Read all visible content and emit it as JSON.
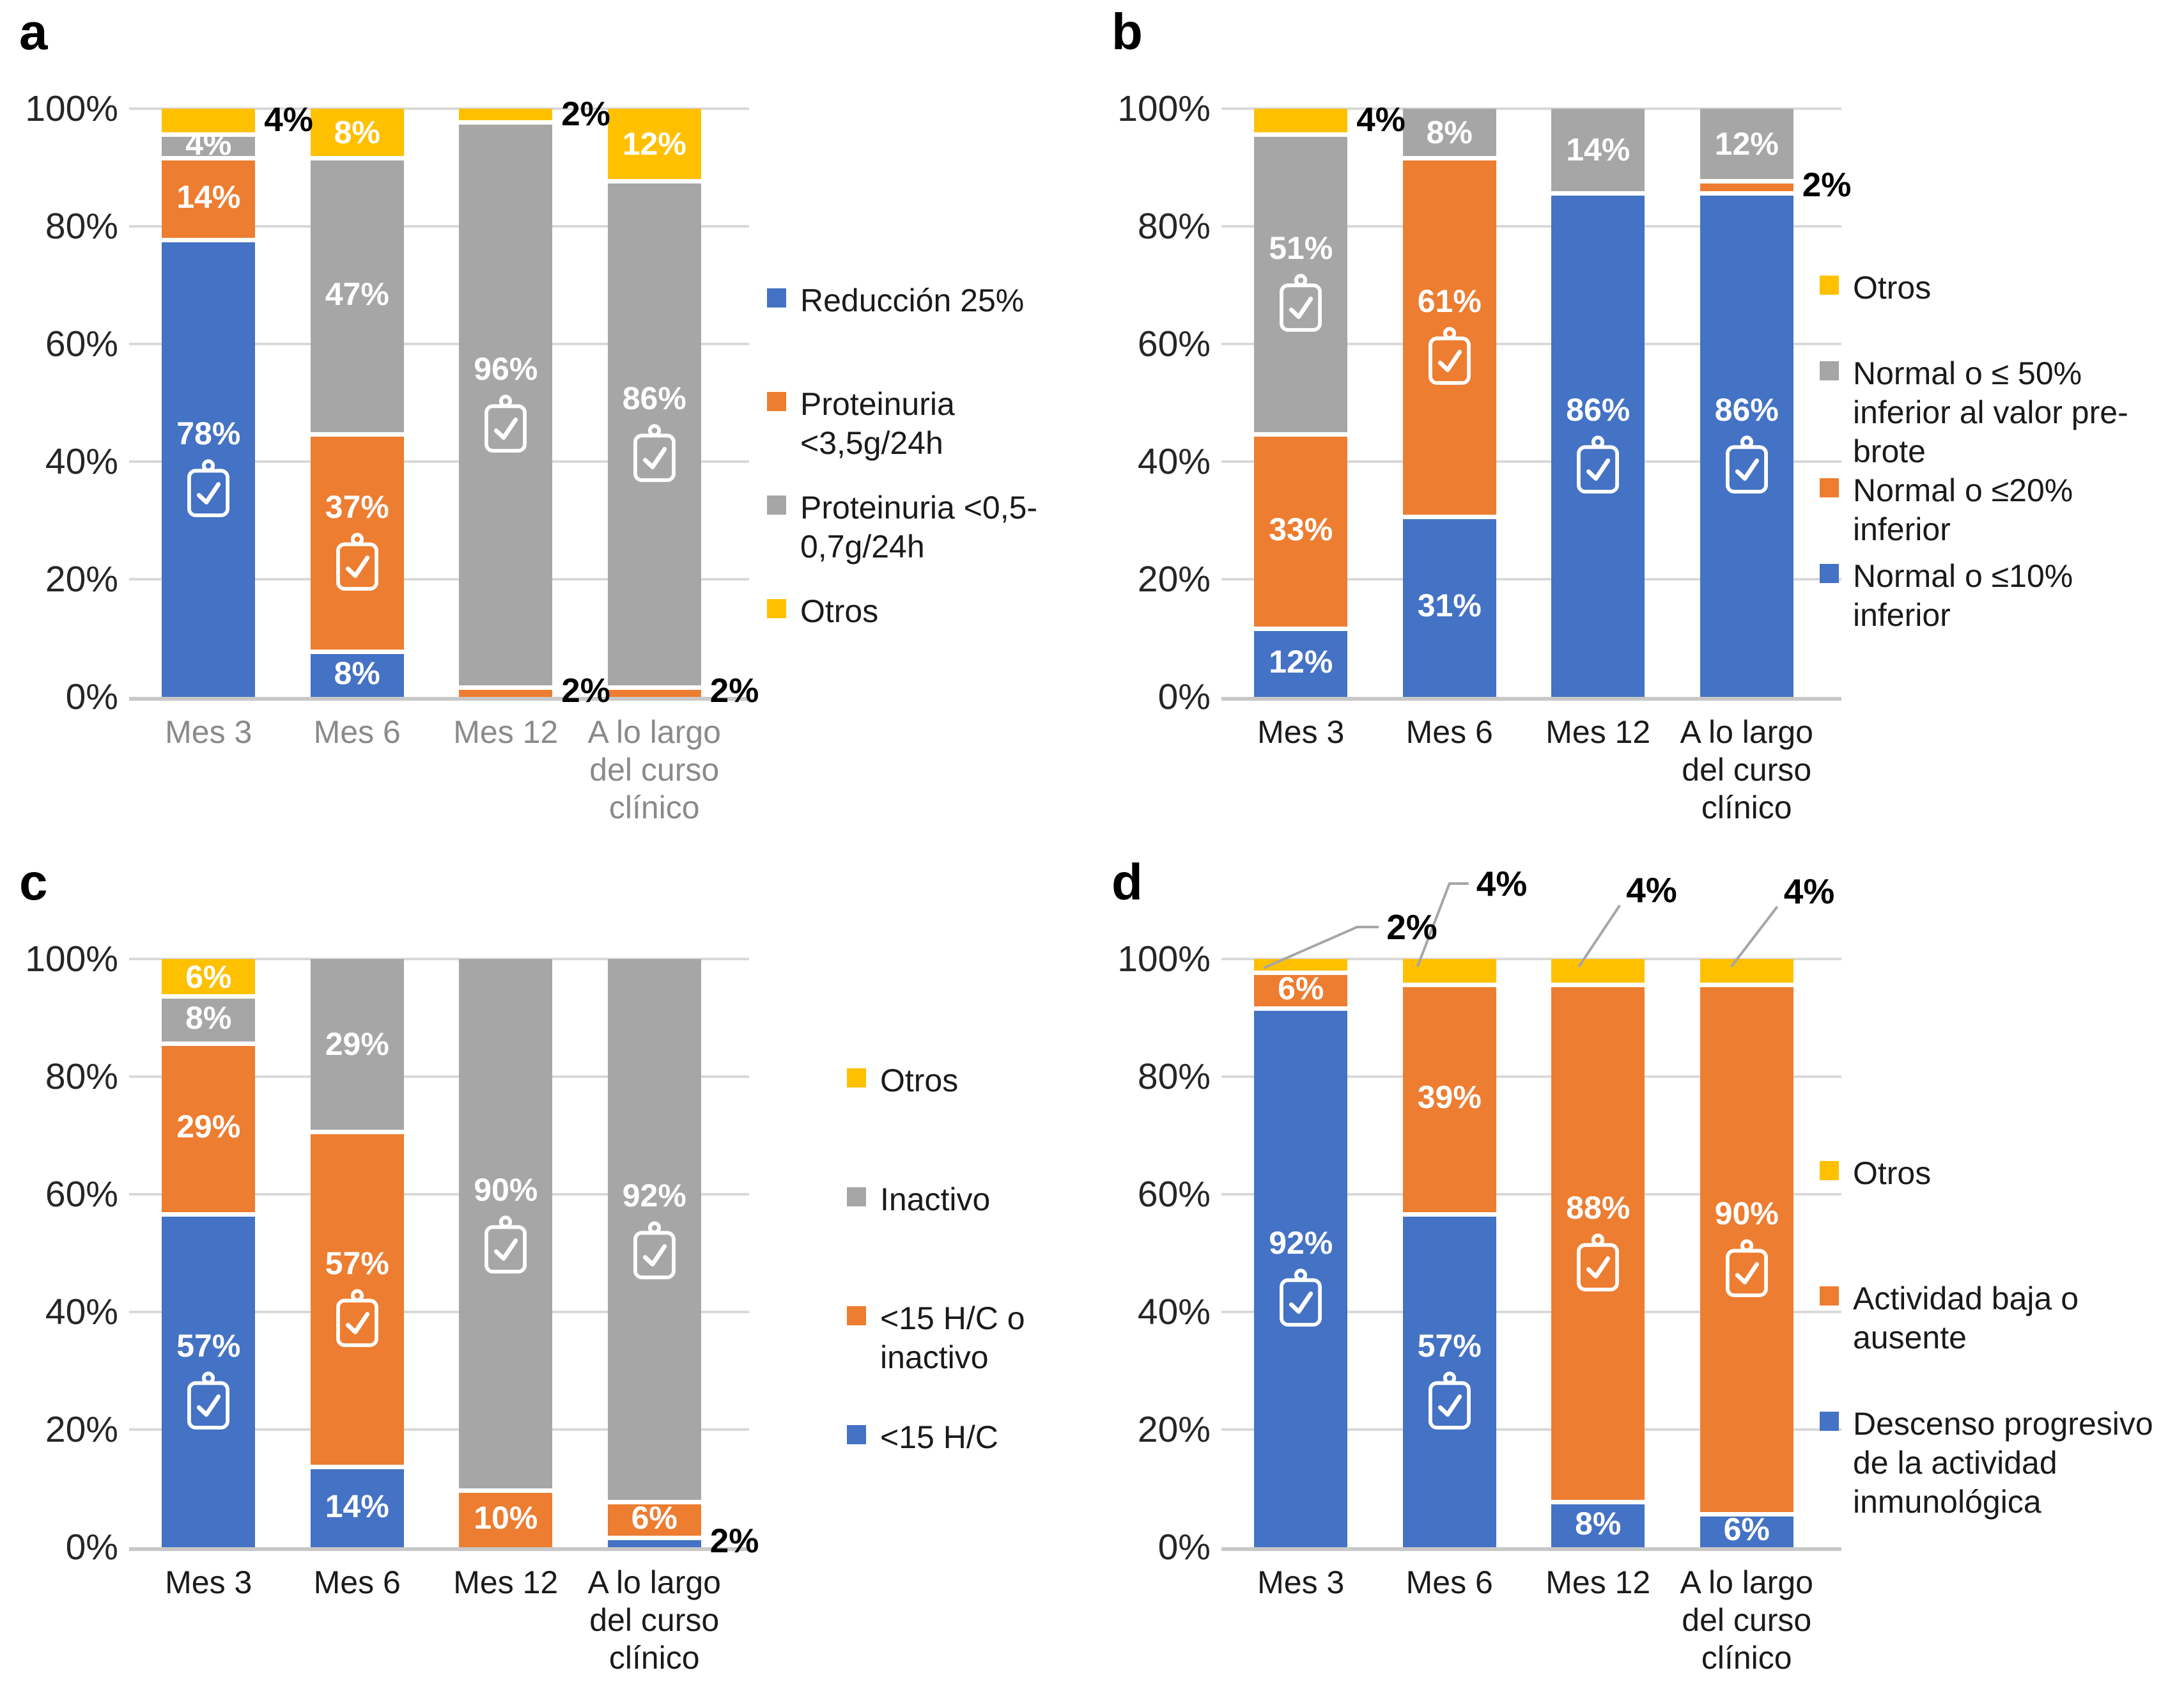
{
  "figure": {
    "background": "#FFFFFF"
  },
  "palette": {
    "blue": "#4472C4",
    "orange": "#ED7D31",
    "gray": "#A6A6A6",
    "yellow": "#FFC000",
    "grid": "#D9D9D9",
    "baseline": "#C8C8C8",
    "leader_line": "#A6A6A6",
    "tick_text": "#262626",
    "x_tick_gray": "#8A8A8A",
    "x_tick_black": "#1A1A1A",
    "inside_label": "#FFFFFF",
    "outside_label": "#000000"
  },
  "axis": {
    "y_ticks": [
      "0%",
      "20%",
      "40%",
      "60%",
      "80%",
      "100%"
    ],
    "ylim": [
      0,
      100
    ]
  },
  "icon": {
    "name": "clipboard-check-icon"
  },
  "chart_data": [
    {
      "panel_letter": "a",
      "type": "bar",
      "stacked": true,
      "grid": true,
      "ylim": [
        0,
        100
      ],
      "legend_position": "right",
      "x_tick_color": "#8A8A8A",
      "categories": [
        "Mes 3",
        "Mes 6",
        "Mes 12",
        "A lo largo del curso clínico"
      ],
      "series": [
        {
          "name": "Reducción 25%",
          "color": "blue",
          "values": [
            78,
            8,
            0,
            0
          ],
          "label_pos": [
            "in",
            "in",
            "",
            ""
          ],
          "icons": [
            true,
            false,
            false,
            false
          ]
        },
        {
          "name": "Proteinuria <3,5g/24h",
          "color": "orange",
          "values": [
            14,
            37,
            2,
            2
          ],
          "label_pos": [
            "in",
            "in",
            "out",
            "out"
          ],
          "icons": [
            false,
            true,
            false,
            false
          ]
        },
        {
          "name": "Proteinuria <0,5-0,7g/24h",
          "color": "gray",
          "values": [
            4,
            47,
            96,
            86
          ],
          "label_pos": [
            "in",
            "in",
            "in",
            "in"
          ],
          "icons": [
            false,
            false,
            true,
            true
          ]
        },
        {
          "name": "Otros",
          "color": "yellow",
          "values": [
            4,
            8,
            2,
            12
          ],
          "label_pos": [
            "out",
            "in",
            "out",
            "in"
          ],
          "icons": [
            false,
            false,
            false,
            false
          ]
        }
      ],
      "legend": [
        {
          "label": "Reducción 25%",
          "color": "blue"
        },
        {
          "label": "Proteinuria <3,5g/24h",
          "color": "orange"
        },
        {
          "label": "Proteinuria <0,5-0,7g/24h",
          "color": "gray"
        },
        {
          "label": "Otros",
          "color": "yellow"
        }
      ]
    },
    {
      "panel_letter": "b",
      "type": "bar",
      "stacked": true,
      "grid": true,
      "ylim": [
        0,
        100
      ],
      "legend_position": "right",
      "x_tick_color": "#1A1A1A",
      "categories": [
        "Mes 3",
        "Mes 6",
        "Mes 12",
        "A lo largo del curso clínico"
      ],
      "series": [
        {
          "name": "Normal o ≤10% inferior",
          "color": "blue",
          "values": [
            12,
            31,
            86,
            86
          ],
          "label_pos": [
            "in",
            "in",
            "in",
            "in"
          ],
          "icons": [
            false,
            false,
            true,
            true
          ]
        },
        {
          "name": "Normal o ≤20% inferior",
          "color": "orange",
          "values": [
            33,
            61,
            0,
            2
          ],
          "label_pos": [
            "in",
            "in",
            "",
            "out"
          ],
          "icons": [
            false,
            true,
            false,
            false
          ]
        },
        {
          "name": "Normal o ≤ 50% inferior al valor pre-brote",
          "color": "gray",
          "values": [
            51,
            8,
            14,
            12
          ],
          "label_pos": [
            "in",
            "in",
            "in",
            "in"
          ],
          "icons": [
            true,
            false,
            false,
            false
          ]
        },
        {
          "name": "Otros",
          "color": "yellow",
          "values": [
            4,
            0,
            0,
            0
          ],
          "label_pos": [
            "out",
            "",
            "",
            ""
          ],
          "icons": [
            false,
            false,
            false,
            false
          ]
        }
      ],
      "legend": [
        {
          "label": "Otros",
          "color": "yellow"
        },
        {
          "label": "Normal o ≤ 50% inferior al valor pre-brote",
          "color": "gray"
        },
        {
          "label": "Normal o ≤20% inferior",
          "color": "orange"
        },
        {
          "label": "Normal o ≤10% inferior",
          "color": "blue"
        }
      ]
    },
    {
      "panel_letter": "c",
      "type": "bar",
      "stacked": true,
      "grid": true,
      "ylim": [
        0,
        100
      ],
      "legend_position": "right",
      "x_tick_color": "#1A1A1A",
      "categories": [
        "Mes 3",
        "Mes 6",
        "Mes 12",
        "A lo largo del curso clínico"
      ],
      "series": [
        {
          "name": "<15 H/C",
          "color": "blue",
          "values": [
            57,
            14,
            0,
            2
          ],
          "label_pos": [
            "in",
            "in",
            "",
            "out"
          ],
          "icons": [
            true,
            false,
            false,
            false
          ]
        },
        {
          "name": "<15 H/C o inactivo",
          "color": "orange",
          "values": [
            29,
            57,
            10,
            6
          ],
          "label_pos": [
            "in",
            "in",
            "in",
            "in"
          ],
          "icons": [
            false,
            true,
            false,
            false
          ]
        },
        {
          "name": "Inactivo",
          "color": "gray",
          "values": [
            8,
            29,
            90,
            92
          ],
          "label_pos": [
            "in",
            "in",
            "in",
            "in"
          ],
          "icons": [
            false,
            false,
            true,
            true
          ]
        },
        {
          "name": "Otros",
          "color": "yellow",
          "values": [
            6,
            0,
            0,
            0
          ],
          "label_pos": [
            "in",
            "",
            "",
            ""
          ],
          "icons": [
            false,
            false,
            false,
            false
          ]
        }
      ],
      "legend": [
        {
          "label": "Otros",
          "color": "yellow"
        },
        {
          "label": "Inactivo",
          "color": "gray"
        },
        {
          "label": "<15 H/C o inactivo",
          "color": "orange"
        },
        {
          "label": "<15 H/C",
          "color": "blue"
        }
      ]
    },
    {
      "panel_letter": "d",
      "type": "bar",
      "stacked": true,
      "grid": true,
      "ylim": [
        0,
        100
      ],
      "legend_position": "right",
      "x_tick_color": "#1A1A1A",
      "categories": [
        "Mes 3",
        "Mes 6",
        "Mes 12",
        "A lo largo del curso clínico"
      ],
      "series": [
        {
          "name": "Descenso progresivo de la actividad inmunológica",
          "color": "blue",
          "values": [
            92,
            57,
            8,
            6
          ],
          "label_pos": [
            "in",
            "in",
            "in",
            "in"
          ],
          "icons": [
            true,
            true,
            false,
            false
          ]
        },
        {
          "name": "Actividad baja o ausente",
          "color": "orange",
          "values": [
            6,
            39,
            88,
            90
          ],
          "label_pos": [
            "in",
            "in",
            "in",
            "in"
          ],
          "icons": [
            false,
            false,
            true,
            true
          ]
        },
        {
          "name": "Otros",
          "color": "yellow",
          "values": [
            2,
            4,
            4,
            4
          ],
          "label_pos": [
            "leader",
            "leader",
            "leader",
            "leader"
          ],
          "icons": [
            false,
            false,
            false,
            false
          ]
        }
      ],
      "legend": [
        {
          "label": "Otros",
          "color": "yellow"
        },
        {
          "label": "Actividad baja o ausente",
          "color": "orange"
        },
        {
          "label": "Descenso progresivo de la actividad inmunológica",
          "color": "blue"
        }
      ]
    }
  ]
}
